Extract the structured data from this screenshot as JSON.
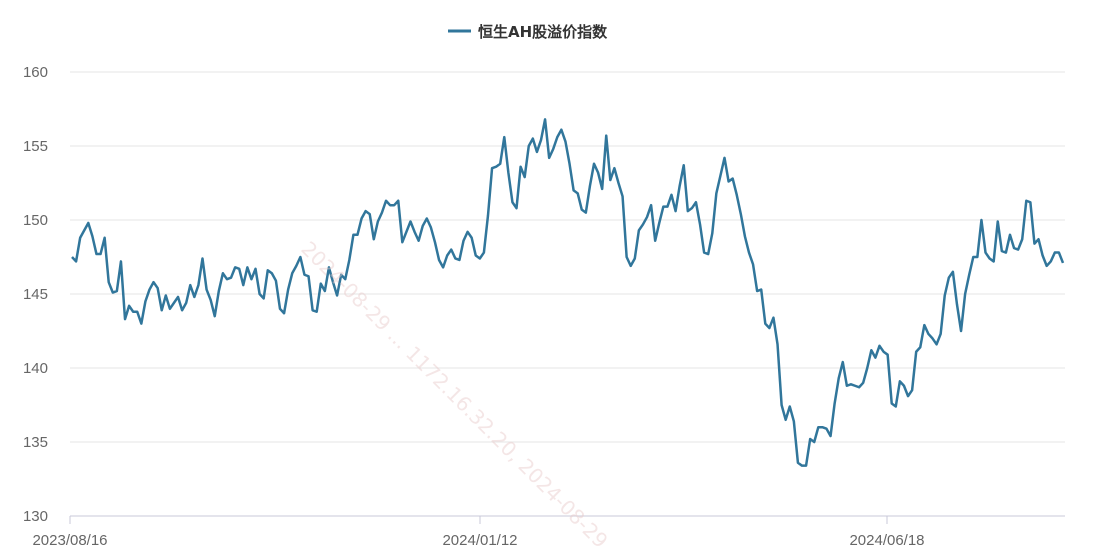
{
  "chart_data": {
    "type": "line",
    "legend_position": "top-center",
    "grid": true,
    "ylim": [
      130,
      160
    ],
    "yticks": [
      130,
      135,
      140,
      145,
      150,
      155,
      160
    ],
    "x_tick_labels": [
      "2023/08/16",
      "2024/01/12",
      "2024/06/18"
    ],
    "watermark_text": "2024-08-29 ... 1172.16.32.20, 2024-08-29",
    "series": [
      {
        "name": "恒生AH股溢价指数",
        "color": "#31769b",
        "values": [
          147.5,
          147.2,
          148.8,
          149.3,
          149.8,
          148.9,
          147.7,
          147.7,
          148.8,
          145.8,
          145.1,
          145.2,
          147.2,
          143.3,
          144.2,
          143.8,
          143.8,
          143.0,
          144.5,
          145.3,
          145.8,
          145.4,
          143.9,
          144.9,
          144.0,
          144.4,
          144.8,
          143.9,
          144.4,
          145.6,
          144.8,
          145.6,
          147.4,
          145.3,
          144.6,
          143.5,
          145.2,
          146.4,
          146.0,
          146.1,
          146.8,
          146.7,
          145.6,
          146.8,
          146.0,
          146.7,
          145.0,
          144.7,
          146.6,
          146.4,
          145.9,
          144.0,
          143.7,
          145.3,
          146.4,
          146.9,
          147.5,
          146.3,
          146.2,
          143.9,
          143.8,
          145.7,
          145.2,
          146.8,
          145.8,
          144.9,
          146.3,
          146.0,
          147.3,
          149.0,
          149.0,
          150.1,
          150.6,
          150.4,
          148.7,
          149.9,
          150.5,
          151.3,
          151.0,
          151.0,
          151.3,
          148.5,
          149.2,
          149.9,
          149.2,
          148.6,
          149.6,
          150.1,
          149.5,
          148.5,
          147.3,
          146.8,
          147.6,
          148.0,
          147.4,
          147.3,
          148.6,
          149.2,
          148.8,
          147.6,
          147.4,
          147.8,
          150.3,
          153.5,
          153.6,
          153.8,
          155.6,
          153.2,
          151.2,
          150.8,
          153.6,
          152.9,
          155.0,
          155.5,
          154.6,
          155.4,
          156.8,
          154.2,
          154.8,
          155.6,
          156.1,
          155.3,
          153.8,
          152.0,
          151.8,
          150.7,
          150.5,
          152.3,
          153.8,
          153.2,
          152.1,
          155.7,
          152.7,
          153.5,
          152.5,
          151.6,
          147.5,
          146.9,
          147.4,
          149.3,
          149.7,
          150.2,
          151.0,
          148.6,
          149.8,
          150.9,
          150.9,
          151.7,
          150.6,
          152.3,
          153.7,
          150.6,
          150.8,
          151.2,
          149.7,
          147.8,
          147.7,
          149.1,
          151.8,
          153.0,
          154.2,
          152.6,
          152.8,
          151.7,
          150.4,
          148.9,
          147.8,
          147.0,
          145.2,
          145.3,
          143.0,
          142.7,
          143.4,
          141.6,
          137.5,
          136.5,
          137.4,
          136.4,
          133.6,
          133.4,
          133.4,
          135.2,
          135.0,
          136.0,
          136.0,
          135.9,
          135.4,
          137.6,
          139.3,
          140.4,
          138.8,
          138.9,
          138.8,
          138.7,
          139.0,
          140.0,
          141.2,
          140.7,
          141.5,
          141.1,
          140.9,
          137.6,
          137.4,
          139.1,
          138.8,
          138.1,
          138.5,
          141.1,
          141.4,
          142.9,
          142.3,
          142.0,
          141.6,
          142.3,
          144.9,
          146.1,
          146.5,
          144.3,
          142.5,
          145.0,
          146.3,
          147.5,
          147.5,
          150.0,
          147.8,
          147.4,
          147.2,
          149.9,
          147.9,
          147.8,
          149.0,
          148.1,
          148.0,
          148.7,
          151.3,
          151.2,
          148.4,
          148.7,
          147.6,
          146.9,
          147.2,
          147.8,
          147.8,
          147.1
        ]
      }
    ]
  }
}
